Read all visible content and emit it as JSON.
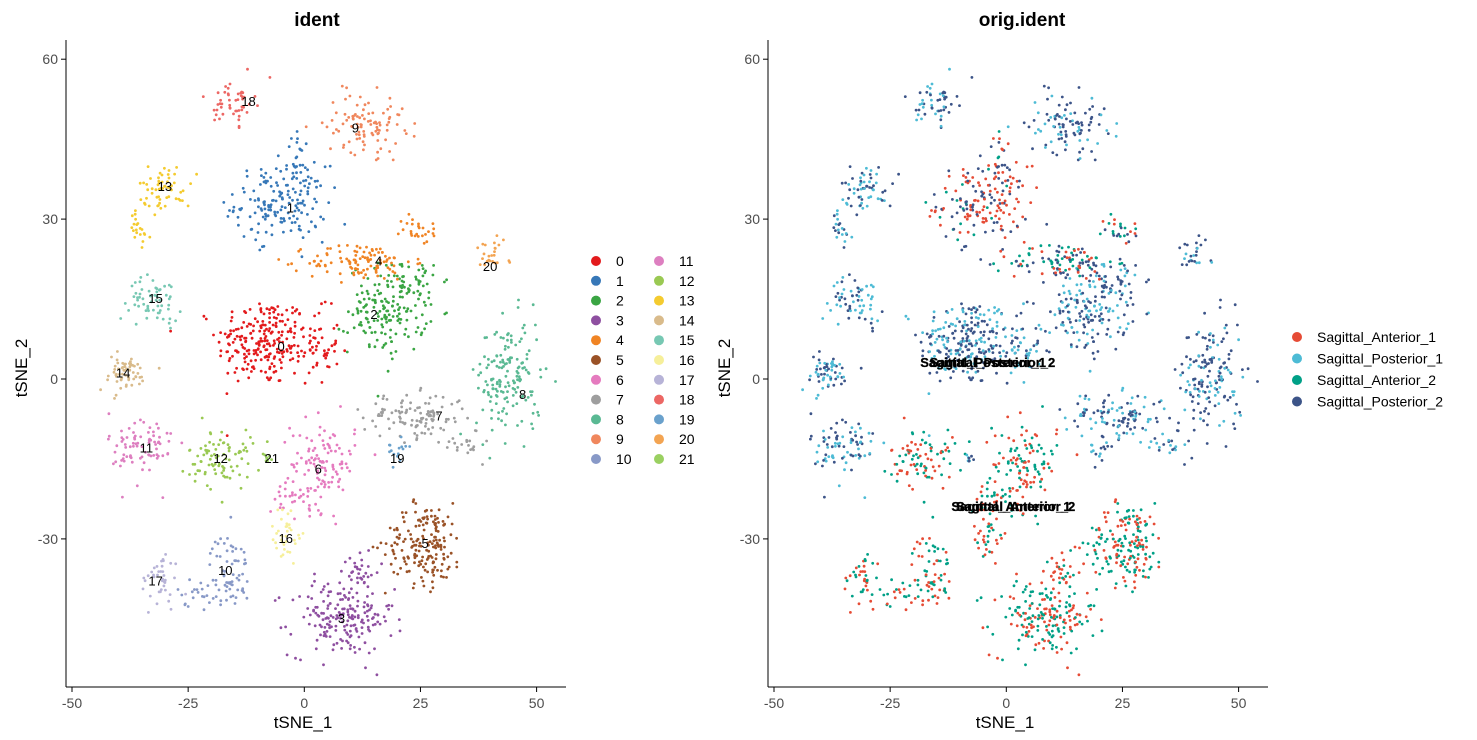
{
  "chart_data": [
    {
      "type": "scatter",
      "title": "ident",
      "xlabel": "tSNE_1",
      "ylabel": "tSNE_2",
      "xlim": [
        -50,
        55
      ],
      "ylim": [
        -58,
        63
      ],
      "xticks": [
        -50,
        -25,
        0,
        25,
        50
      ],
      "xtick_labels": [
        "-50",
        "-25",
        "0",
        "25",
        "50"
      ],
      "yticks": [
        -30,
        0,
        30,
        60
      ],
      "ytick_labels": [
        "-30",
        "0",
        "30",
        "60"
      ],
      "legend_position": "right",
      "groups": [
        {
          "name": "0",
          "label": "0",
          "color": "#e31a1c",
          "label_pos": [
            -5,
            6
          ]
        },
        {
          "name": "1",
          "label": "1",
          "color": "#3778b8",
          "label_pos": [
            -3,
            32
          ]
        },
        {
          "name": "2",
          "label": "2",
          "color": "#3aa543",
          "label_pos": [
            15,
            12
          ]
        },
        {
          "name": "3",
          "label": "3",
          "color": "#8e4fa0",
          "label_pos": [
            8,
            -45
          ]
        },
        {
          "name": "4",
          "label": "4",
          "color": "#f08424",
          "label_pos": [
            16,
            22
          ]
        },
        {
          "name": "5",
          "label": "5",
          "color": "#9a5227",
          "label_pos": [
            26,
            -31
          ]
        },
        {
          "name": "6",
          "label": "6",
          "color": "#e57bbf",
          "label_pos": [
            3,
            -17
          ]
        },
        {
          "name": "7",
          "label": "7",
          "color": "#9e9e9e",
          "label_pos": [
            29,
            -7
          ]
        },
        {
          "name": "8",
          "label": "8",
          "color": "#5ab993",
          "label_pos": [
            47,
            -3
          ]
        },
        {
          "name": "9",
          "label": "9",
          "color": "#f0875d",
          "label_pos": [
            11,
            47
          ]
        },
        {
          "name": "10",
          "label": "10",
          "color": "#8899c7",
          "label_pos": [
            -17,
            -36
          ]
        },
        {
          "name": "11",
          "label": "11",
          "color": "#dd7fc0",
          "label_pos": [
            -34,
            -13
          ]
        },
        {
          "name": "12",
          "label": "12",
          "color": "#9ac953",
          "label_pos": [
            -18,
            -15
          ]
        },
        {
          "name": "13",
          "label": "13",
          "color": "#f4cb2f",
          "label_pos": [
            -30,
            36
          ]
        },
        {
          "name": "14",
          "label": "14",
          "color": "#d9bb8b",
          "label_pos": [
            -39,
            1
          ]
        },
        {
          "name": "15",
          "label": "15",
          "color": "#77c8b3",
          "label_pos": [
            -32,
            15
          ]
        },
        {
          "name": "16",
          "label": "16",
          "color": "#f6ef9a",
          "label_pos": [
            -4,
            -30
          ]
        },
        {
          "name": "17",
          "label": "17",
          "color": "#b7b3d7",
          "label_pos": [
            -32,
            -38
          ]
        },
        {
          "name": "18",
          "label": "18",
          "color": "#ec6764",
          "label_pos": [
            -12,
            52
          ]
        },
        {
          "name": "19",
          "label": "19",
          "color": "#6aa1cc",
          "label_pos": [
            20,
            -15
          ]
        },
        {
          "name": "20",
          "label": "20",
          "color": "#f3a452",
          "label_pos": [
            40,
            21
          ]
        },
        {
          "name": "21",
          "label": "21",
          "color": "#9ad061",
          "label_pos": [
            -7,
            -15
          ]
        }
      ]
    },
    {
      "type": "scatter",
      "title": "orig.ident",
      "xlabel": "tSNE_1",
      "ylabel": "tSNE_2",
      "xlim": [
        -50,
        55
      ],
      "ylim": [
        -58,
        63
      ],
      "xticks": [
        -50,
        -25,
        0,
        25,
        50
      ],
      "xtick_labels": [
        "-50",
        "-25",
        "0",
        "25",
        "50"
      ],
      "yticks": [
        -30,
        0,
        30,
        60
      ],
      "ytick_labels": [
        "-30",
        "0",
        "30",
        "60"
      ],
      "legend_position": "right",
      "groups": [
        {
          "name": "Sagittal_Anterior_1",
          "label": "Sagittal_Anterior_1",
          "color": "#e64b35"
        },
        {
          "name": "Sagittal_Posterior_1",
          "label": "Sagittal_Posterior_1",
          "color": "#4dbbd5"
        },
        {
          "name": "Sagittal_Anterior_2",
          "label": "Sagittal_Anterior_2",
          "color": "#00a087"
        },
        {
          "name": "Sagittal_Posterior_2",
          "label": "Sagittal_Posterior_2",
          "color": "#3c5488"
        }
      ],
      "plot_labels": [
        {
          "text": "Sagittal_Posterior_1",
          "pos": [
            -5,
            3
          ]
        },
        {
          "text": "Sagittal_Posterior_2",
          "pos": [
            -3,
            3
          ]
        },
        {
          "text": "Sagittal_Anterior_1",
          "pos": [
            1,
            -24
          ]
        },
        {
          "text": "Sagittal_Anterior_2",
          "pos": [
            2,
            -24
          ]
        }
      ]
    }
  ]
}
